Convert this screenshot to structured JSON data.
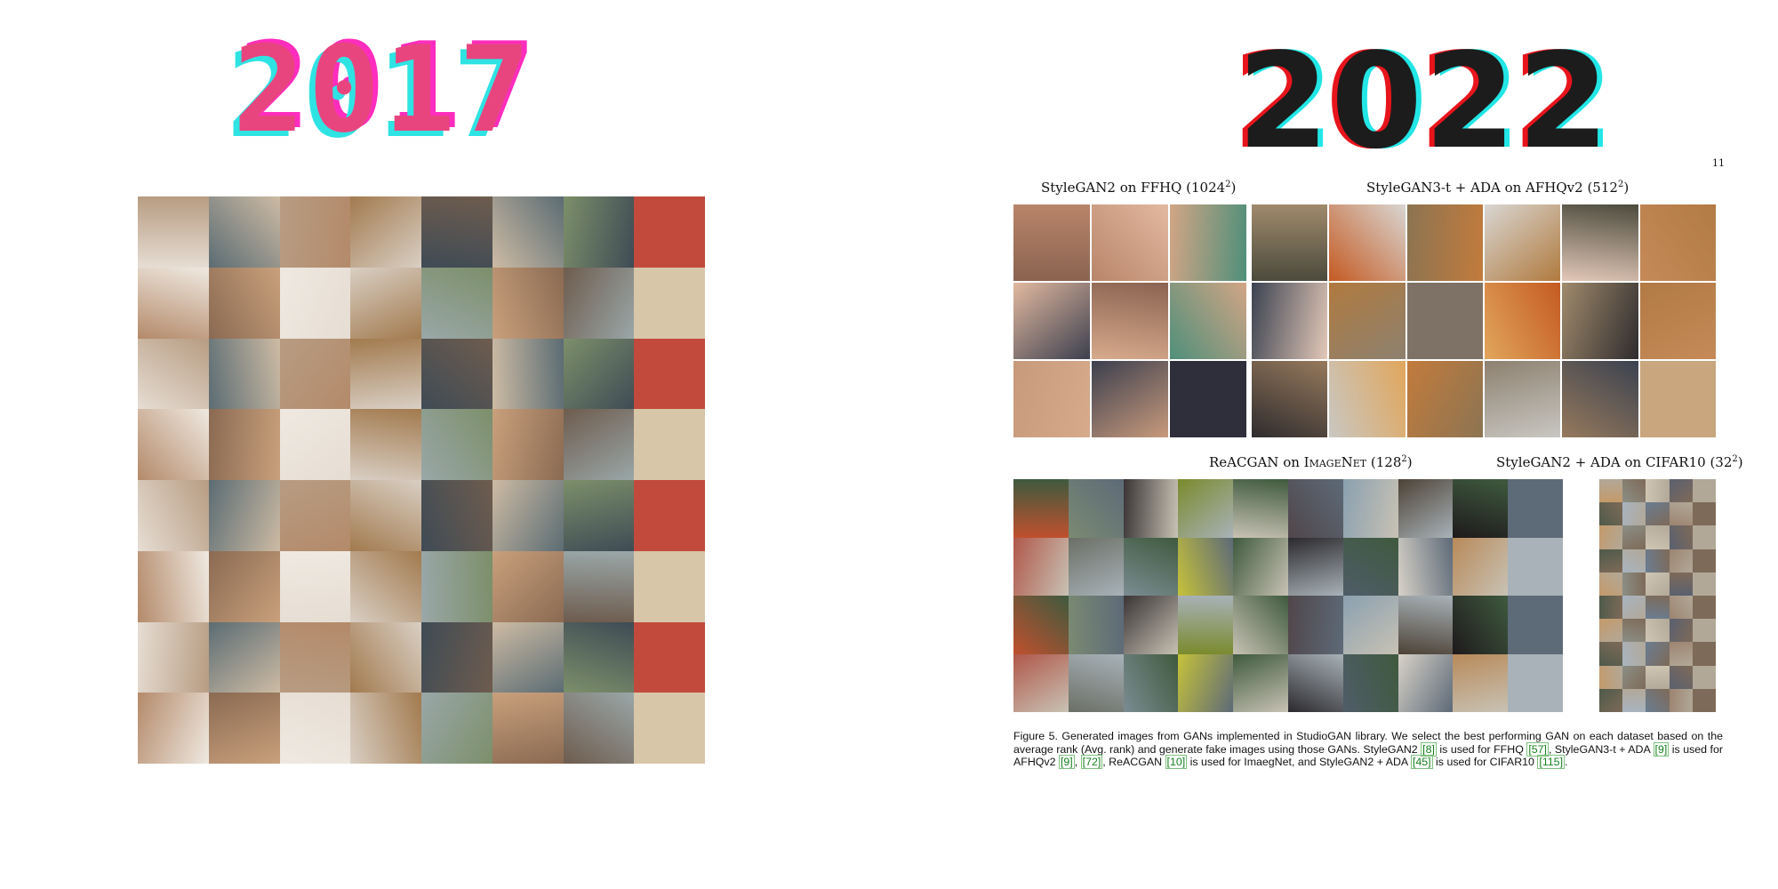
{
  "left_year": "2017",
  "right_year": "2022",
  "page_number": "11",
  "labels": {
    "ffhq": {
      "text": "StyleGAN2 on FFHQ (1024",
      "sup": "2",
      "close": ")"
    },
    "afhq": {
      "text": "StyleGAN3-t + ADA on AFHQv2 (512",
      "sup": "2",
      "close": ")"
    },
    "imagenet": {
      "pre": "ReACGAN on ",
      "sc": "ImageNet",
      "text": " (128",
      "sup": "2",
      "close": ")"
    },
    "cifar": {
      "text": "StyleGAN2 + ADA on CIFAR10 (32",
      "sup": "2",
      "close": ")"
    }
  },
  "caption": {
    "p1": "Figure 5. Generated images from GANs implemented in StudioGAN library. We select the best performing GAN on each dataset based on the average rank (Avg. rank) and generate fake images using those GANs. StyleGAN2 ",
    "r1": "[8]",
    "p2": " is used for FFHQ ",
    "r2": "[57]",
    "p3": ", StyleGAN3-t + ADA ",
    "r3": "[9]",
    "p4": " is used for AFHQv2 ",
    "r4": "[9]",
    "p5": ", ",
    "r5": "[72]",
    "p6": ", ReACGAN ",
    "r6": "[10]",
    "p7": " is used for ImaegNet, and StyleGAN2 + ADA ",
    "r7": "[45]",
    "p8": " is used for CIFAR10 ",
    "r8": "[115]",
    "p9": "."
  },
  "palettes": {
    "bedroom": [
      "#d9cfc4",
      "#b79c82",
      "#8a6a52",
      "#e6ddd3",
      "#c24a3c",
      "#6e5c4e",
      "#cdbba4",
      "#9aa7a8",
      "#a27a4e",
      "#efe9e1",
      "#5b6c73",
      "#b48a6a",
      "#d8c6a8",
      "#7c8f6a",
      "#c9a07c",
      "#3f4b55"
    ],
    "ffhq": [
      "#c89a7c",
      "#b9856a",
      "#4f8f7a",
      "#8a6350",
      "#d7aa8c",
      "#2e2f3a",
      "#e2b9a0",
      "#3c3f4e",
      "#d2a585"
    ],
    "afhq": [
      "#8d8170",
      "#a08a6c",
      "#c58a58",
      "#4b4a3c",
      "#c9c7c2",
      "#7d7265",
      "#d9d6d2",
      "#96795c",
      "#b27a44",
      "#3b4250",
      "#c45a22",
      "#c27b3c",
      "#e1a65c",
      "#e3c8b8",
      "#c9a67e",
      "#2f2c2e",
      "#b07a3e",
      "#8c7452"
    ],
    "imagenet": [
      "#6b6f66",
      "#3f5a3e",
      "#d8d2c8",
      "#c0502e",
      "#7a8a2c",
      "#8aa0b0",
      "#5d6a78",
      "#7b8c92",
      "#2c2a2e",
      "#b88a5a",
      "#7a8a72",
      "#c8c2b4",
      "#4d4236",
      "#b0584a",
      "#c6c23a",
      "#4f5c68",
      "#a8b2b8",
      "#3a3436",
      "#50464a",
      "#1e1a1c"
    ],
    "cifar": [
      "#8c8f86",
      "#b2a898",
      "#6a7d92",
      "#c49a6a",
      "#5a6070",
      "#a8b4c0",
      "#7e6a58",
      "#d0c6b4",
      "#4e5a4a",
      "#9c8470"
    ]
  }
}
